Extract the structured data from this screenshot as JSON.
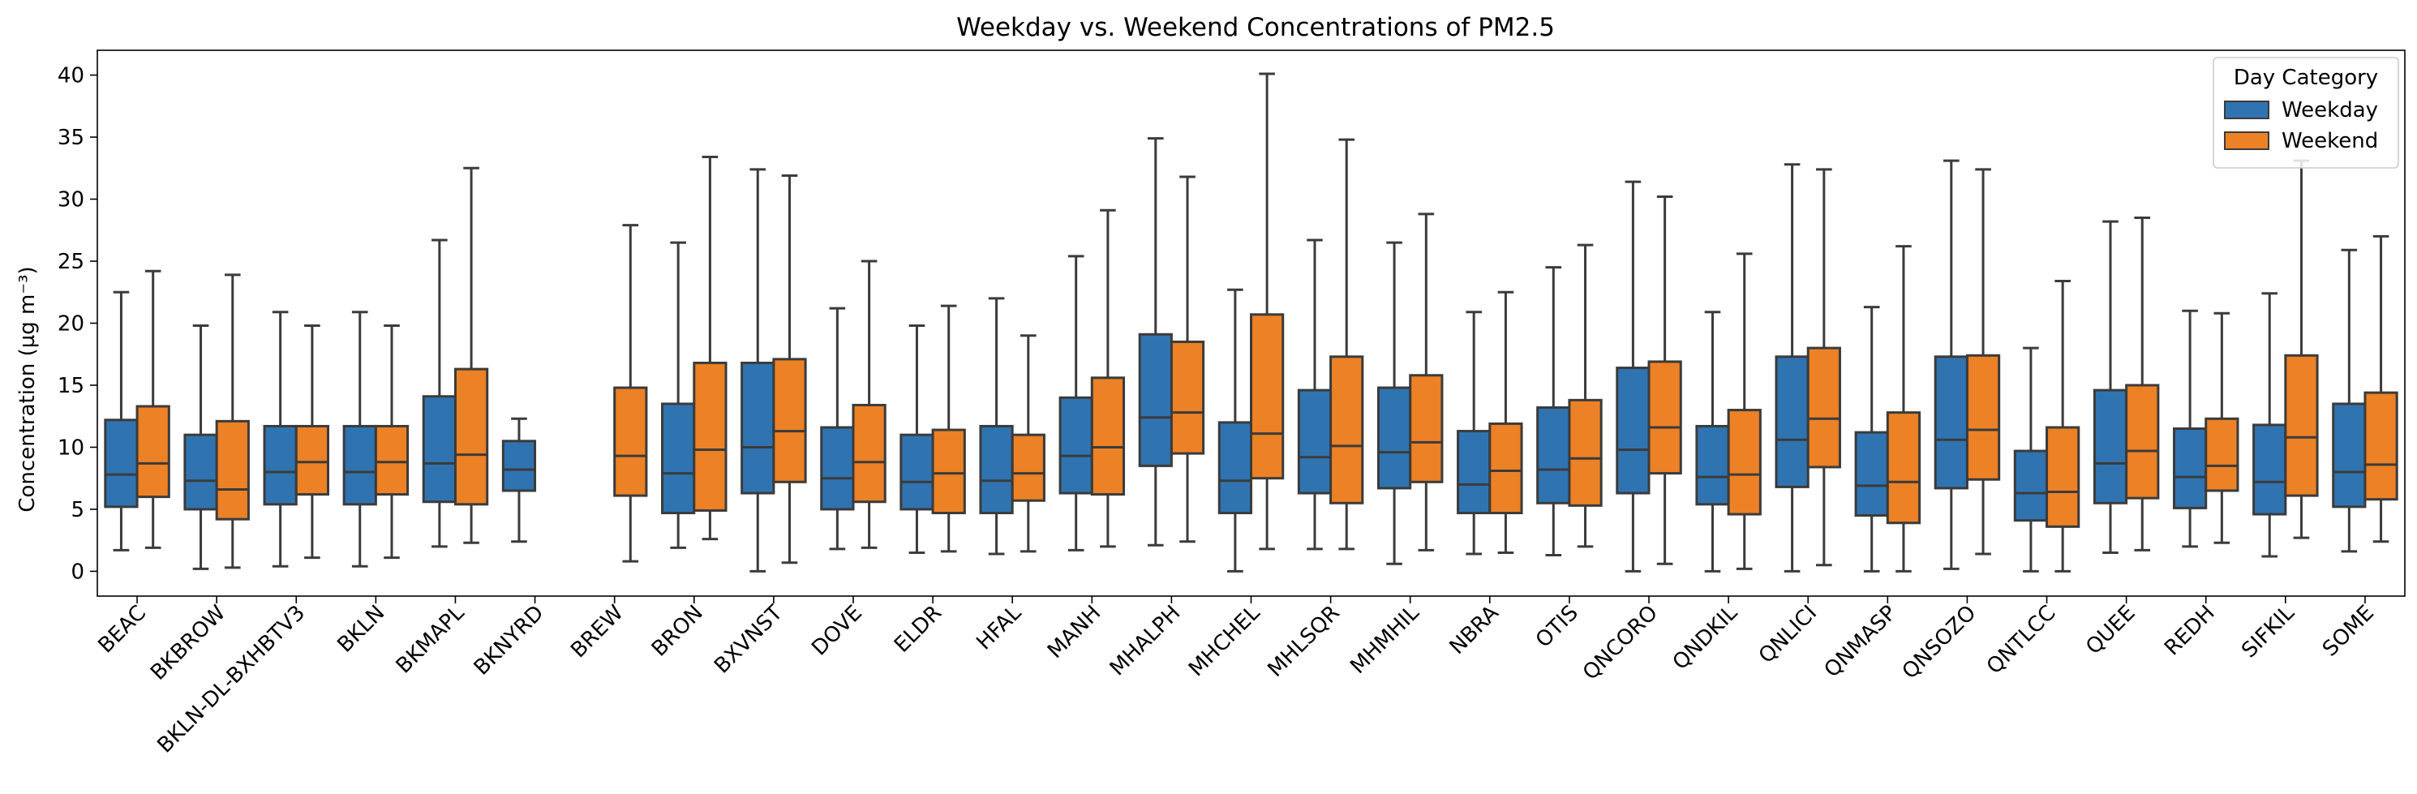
{
  "chart_data": {
    "type": "boxplot",
    "title": "Weekday vs. Weekend Concentrations of PM2.5",
    "xlabel": "",
    "ylabel": "Concentration (µg m⁻³)",
    "ylim": [
      -2,
      42
    ],
    "yticks": [
      0,
      5,
      10,
      15,
      20,
      25,
      30,
      35,
      40
    ],
    "grid": false,
    "legend": {
      "title": "Day Category",
      "placement": "top-right",
      "entries": [
        {
          "name": "Weekday",
          "color": "#2f74b1"
        },
        {
          "name": "Weekend",
          "color": "#ec8125"
        }
      ]
    },
    "categories": [
      "BEAC",
      "BKBROW",
      "BKLN-DL-BXHBTV3",
      "BKLN",
      "BKMAPL",
      "BKNYRD",
      "BREW",
      "BRON",
      "BXVNST",
      "DOVE",
      "ELDR",
      "HFAL",
      "MANH",
      "MHALPH",
      "MHCHEL",
      "MHLSQR",
      "MHMHIL",
      "NBRA",
      "OTIS",
      "QNCORO",
      "QNDKIL",
      "QNLICI",
      "QNMASP",
      "QNSOZO",
      "QNTLCC",
      "QUEE",
      "REDH",
      "SIFKIL",
      "SOME"
    ],
    "series": [
      {
        "name": "Weekday",
        "color": "#2f74b1",
        "boxes": [
          [
            1.7,
            5.2,
            7.8,
            12.2,
            22.5
          ],
          [
            0.2,
            5.0,
            7.3,
            11.0,
            19.8
          ],
          [
            0.4,
            5.4,
            8.0,
            11.7,
            20.9
          ],
          [
            0.4,
            5.4,
            8.0,
            11.7,
            20.9
          ],
          [
            2.0,
            5.6,
            8.7,
            14.1,
            26.7
          ],
          [
            2.4,
            6.5,
            8.2,
            10.5,
            12.3
          ],
          null,
          [
            1.9,
            4.7,
            7.9,
            13.5,
            26.5
          ],
          [
            0.0,
            6.3,
            10.0,
            16.8,
            32.4
          ],
          [
            1.8,
            5.0,
            7.5,
            11.6,
            21.2
          ],
          [
            1.5,
            5.0,
            7.2,
            11.0,
            19.8
          ],
          [
            1.4,
            4.7,
            7.3,
            11.7,
            22.0
          ],
          [
            1.7,
            6.3,
            9.3,
            14.0,
            25.4
          ],
          [
            2.1,
            8.5,
            12.4,
            19.1,
            34.9
          ],
          [
            0.0,
            4.7,
            7.3,
            12.0,
            22.7
          ],
          [
            1.8,
            6.3,
            9.2,
            14.6,
            26.7
          ],
          [
            0.6,
            6.7,
            9.6,
            14.8,
            26.5
          ],
          [
            1.4,
            4.7,
            7.0,
            11.3,
            20.9
          ],
          [
            1.3,
            5.5,
            8.2,
            13.2,
            24.5
          ],
          [
            0.0,
            6.3,
            9.8,
            16.4,
            31.4
          ],
          [
            0.0,
            5.4,
            7.6,
            11.7,
            20.9
          ],
          [
            0.0,
            6.8,
            10.6,
            17.3,
            32.8
          ],
          [
            0.0,
            4.5,
            6.9,
            11.2,
            21.3
          ],
          [
            0.2,
            6.7,
            10.6,
            17.3,
            33.1
          ],
          [
            0.0,
            4.1,
            6.3,
            9.7,
            18.0
          ],
          [
            1.5,
            5.5,
            8.7,
            14.6,
            28.2
          ],
          [
            2.0,
            5.1,
            7.6,
            11.5,
            21.0
          ],
          [
            1.2,
            4.6,
            7.2,
            11.8,
            22.4
          ],
          [
            1.6,
            5.2,
            8.0,
            13.5,
            25.9
          ]
        ]
      },
      {
        "name": "Weekend",
        "color": "#ec8125",
        "boxes": [
          [
            1.9,
            6.0,
            8.7,
            13.3,
            24.2
          ],
          [
            0.3,
            4.2,
            6.6,
            12.1,
            23.9
          ],
          [
            1.1,
            6.2,
            8.8,
            11.7,
            19.8
          ],
          [
            1.1,
            6.2,
            8.8,
            11.7,
            19.8
          ],
          [
            2.3,
            5.4,
            9.4,
            16.3,
            32.5
          ],
          null,
          [
            0.8,
            6.1,
            9.3,
            14.8,
            27.9
          ],
          [
            2.6,
            4.9,
            9.8,
            16.8,
            33.4
          ],
          [
            0.7,
            7.2,
            11.3,
            17.1,
            31.9
          ],
          [
            1.9,
            5.6,
            8.8,
            13.4,
            25.0
          ],
          [
            1.6,
            4.7,
            7.9,
            11.4,
            21.4
          ],
          [
            1.6,
            5.7,
            7.9,
            11.0,
            19.0
          ],
          [
            2.0,
            6.2,
            10.0,
            15.6,
            29.1
          ],
          [
            2.4,
            9.5,
            12.8,
            18.5,
            31.8
          ],
          [
            1.8,
            7.5,
            11.1,
            20.7,
            40.1
          ],
          [
            1.8,
            5.5,
            10.1,
            17.3,
            34.8
          ],
          [
            1.7,
            7.2,
            10.4,
            15.8,
            28.8
          ],
          [
            1.5,
            4.7,
            8.1,
            11.9,
            22.5
          ],
          [
            2.0,
            5.3,
            9.1,
            13.8,
            26.3
          ],
          [
            0.6,
            7.9,
            11.6,
            16.9,
            30.2
          ],
          [
            0.2,
            4.6,
            7.8,
            13.0,
            25.6
          ],
          [
            0.5,
            8.4,
            12.3,
            18.0,
            32.4
          ],
          [
            0.0,
            3.9,
            7.2,
            12.8,
            26.2
          ],
          [
            1.4,
            7.4,
            11.4,
            17.4,
            32.4
          ],
          [
            0.0,
            3.6,
            6.4,
            11.6,
            23.4
          ],
          [
            1.7,
            5.9,
            9.7,
            15.0,
            28.5
          ],
          [
            2.3,
            6.5,
            8.5,
            12.3,
            20.8
          ],
          [
            2.7,
            6.1,
            10.8,
            17.4,
            33.1
          ],
          [
            2.4,
            5.8,
            8.6,
            14.4,
            27.0
          ]
        ]
      }
    ]
  }
}
